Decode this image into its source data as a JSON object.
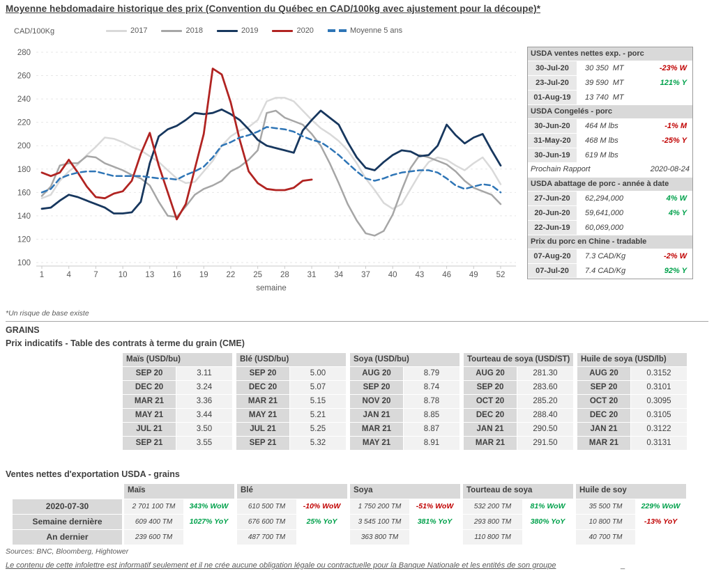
{
  "title": "Moyenne hebdomadaire historique des prix (Convention du Québec en CAD/100kg avec ajustement pour la découpe)*",
  "chart": {
    "unit_label": "CAD/100Kg",
    "x_axis_label": "semaine"
  },
  "chart_data": {
    "type": "line",
    "title": "Moyenne hebdomadaire historique des prix",
    "xlabel": "semaine",
    "ylabel": "CAD/100Kg",
    "ylim": [
      100,
      280
    ],
    "yticks": [
      100,
      120,
      140,
      160,
      180,
      200,
      220,
      240,
      260,
      280
    ],
    "xticks": [
      1,
      4,
      7,
      10,
      13,
      16,
      19,
      22,
      25,
      28,
      31,
      34,
      37,
      40,
      43,
      46,
      49,
      52
    ],
    "x_range": [
      1,
      52
    ],
    "grid": "horizontal-dashed",
    "legend_position": "top",
    "series": [
      {
        "name": "2017",
        "color": "#d9d9d9",
        "dash": false,
        "values": [
          155,
          158,
          170,
          178,
          184,
          192,
          199,
          207,
          206,
          203,
          199,
          196,
          191,
          186,
          179,
          172,
          168,
          169,
          178,
          187,
          200,
          208,
          213,
          216,
          222,
          238,
          241,
          241,
          238,
          230,
          222,
          215,
          210,
          204,
          196,
          185,
          172,
          162,
          151,
          146,
          150,
          163,
          176,
          186,
          190,
          188,
          183,
          179,
          185,
          190,
          180,
          167
        ]
      },
      {
        "name": "2018",
        "color": "#a6a6a6",
        "dash": false,
        "values": [
          157,
          165,
          183,
          185,
          185,
          191,
          190,
          185,
          182,
          179,
          175,
          172,
          166,
          152,
          140,
          139,
          148,
          158,
          163,
          166,
          170,
          178,
          182,
          188,
          196,
          228,
          230,
          224,
          221,
          218,
          210,
          200,
          185,
          168,
          150,
          136,
          125,
          123,
          127,
          141,
          162,
          181,
          192,
          190,
          187,
          184,
          178,
          170,
          164,
          161,
          158,
          150
        ]
      },
      {
        "name": "2019",
        "color": "#17375e",
        "dash": false,
        "values": [
          146,
          147,
          153,
          158,
          156,
          153,
          150,
          147,
          142,
          142,
          143,
          152,
          185,
          208,
          214,
          217,
          222,
          228,
          227,
          228,
          231,
          227,
          222,
          214,
          205,
          200,
          198,
          196,
          194,
          213,
          222,
          230,
          224,
          218,
          203,
          190,
          181,
          179,
          186,
          192,
          196,
          195,
          191,
          192,
          200,
          218,
          209,
          202,
          207,
          210,
          196,
          183
        ]
      },
      {
        "name": "2020",
        "color": "#b12422",
        "dash": false,
        "values": [
          177,
          174,
          177,
          188,
          177,
          165,
          156,
          155,
          159,
          161,
          170,
          193,
          211,
          183,
          160,
          137,
          150,
          180,
          210,
          266,
          261,
          237,
          205,
          178,
          168,
          163,
          162,
          162,
          164,
          170,
          171
        ]
      },
      {
        "name": "Moyenne 5 ans",
        "color": "#2e75b6",
        "dash": true,
        "values": [
          160,
          163,
          172,
          175,
          177,
          178,
          178,
          176,
          174,
          174,
          174,
          174,
          173,
          172,
          172,
          171,
          175,
          178,
          182,
          190,
          200,
          203,
          207,
          209,
          212,
          216,
          215,
          214,
          212,
          208,
          205,
          203,
          198,
          192,
          185,
          178,
          172,
          170,
          172,
          175,
          177,
          178,
          179,
          179,
          177,
          172,
          166,
          163,
          165,
          167,
          166,
          160
        ]
      }
    ]
  },
  "status_colors": {
    "red": "#c00000",
    "green": "#00a14b"
  },
  "side_table": {
    "sections": [
      {
        "header": "USDA ventes nettes exp. - porc",
        "rows": [
          {
            "date": "30-Jul-20",
            "value": "30 350  MT",
            "pct": "-23% W",
            "status": "red"
          },
          {
            "date": "23-Jul-20",
            "value": "39 590  MT",
            "pct": "121% Y",
            "status": "green"
          },
          {
            "date": "01-Aug-19",
            "value": "13 740  MT",
            "pct": "",
            "status": ""
          }
        ]
      },
      {
        "header": "USDA Congelés - porc",
        "rows": [
          {
            "date": "30-Jun-20",
            "value": "464 M lbs",
            "pct": "-1% M",
            "status": "red"
          },
          {
            "date": "31-May-20",
            "value": "468 M lbs",
            "pct": "-25% Y",
            "status": "red"
          },
          {
            "date": "30-Jun-19",
            "value": "619 M lbs",
            "pct": "",
            "status": ""
          }
        ]
      },
      {
        "note": {
          "label": "Prochain Rapport",
          "value": "2020-08-24"
        }
      },
      {
        "header": "USDA abattage de porc - année à date",
        "rows": [
          {
            "date": "27-Jun-20",
            "value": "62,294,000",
            "pct": "4% W",
            "status": "green"
          },
          {
            "date": "20-Jun-20",
            "value": "59,641,000",
            "pct": "4% Y",
            "status": "green"
          },
          {
            "date": "22-Jun-19",
            "value": "60,069,000",
            "pct": "",
            "status": ""
          }
        ]
      },
      {
        "header": "Prix du porc en Chine - tradable",
        "rows": [
          {
            "date": "07-Aug-20",
            "value": "7.3 CAD/Kg",
            "pct": "-2% W",
            "status": "red"
          },
          {
            "date": "07-Jul-20",
            "value": "7.4 CAD/Kg",
            "pct": "92% Y",
            "status": "green"
          }
        ]
      }
    ]
  },
  "footnote": "*Un risque de base existe",
  "grains": {
    "section_title": "GRAINS",
    "futures_title": "Prix indicatifs - Table des contrats à terme du grain (CME)",
    "futures": [
      {
        "header": "Maïs (USD/bu)",
        "rows": [
          [
            "SEP 20",
            "3.11"
          ],
          [
            "DEC 20",
            "3.24"
          ],
          [
            "MAR 21",
            "3.36"
          ],
          [
            "MAY 21",
            "3.44"
          ],
          [
            "JUL 21",
            "3.50"
          ],
          [
            "SEP 21",
            "3.55"
          ]
        ]
      },
      {
        "header": "Blé (USD/bu)",
        "rows": [
          [
            "SEP 20",
            "5.00"
          ],
          [
            "DEC 20",
            "5.07"
          ],
          [
            "MAR 21",
            "5.15"
          ],
          [
            "MAY 21",
            "5.21"
          ],
          [
            "JUL 21",
            "5.25"
          ],
          [
            "SEP 21",
            "5.32"
          ]
        ]
      },
      {
        "header": "Soya (USD/bu)",
        "rows": [
          [
            "AUG 20",
            "8.79"
          ],
          [
            "SEP 20",
            "8.74"
          ],
          [
            "NOV 20",
            "8.78"
          ],
          [
            "JAN 21",
            "8.85"
          ],
          [
            "MAR 21",
            "8.87"
          ],
          [
            "MAY 21",
            "8.91"
          ]
        ]
      },
      {
        "header": "Tourteau de soya (USD/ST)",
        "rows": [
          [
            "AUG 20",
            "281.30"
          ],
          [
            "SEP 20",
            "283.60"
          ],
          [
            "OCT 20",
            "285.20"
          ],
          [
            "DEC 20",
            "288.40"
          ],
          [
            "JAN 21",
            "290.50"
          ],
          [
            "MAR 21",
            "291.50"
          ]
        ]
      },
      {
        "header": "Huile de soya (USD/lb)",
        "rows": [
          [
            "AUG 20",
            "0.3152"
          ],
          [
            "SEP 20",
            "0.3101"
          ],
          [
            "OCT 20",
            "0.3095"
          ],
          [
            "DEC 20",
            "0.3105"
          ],
          [
            "JAN 21",
            "0.3122"
          ],
          [
            "MAR 21",
            "0.3131"
          ]
        ]
      }
    ],
    "exports_title": "Ventes nettes d'exportation USDA - grains",
    "exports": {
      "row_labels": [
        "2020-07-30",
        "Semaine dernière",
        "An dernier"
      ],
      "groups": [
        {
          "header": "Maïs",
          "rows": [
            [
              "2 701 100 TM",
              "343% WoW",
              "green"
            ],
            [
              "609 400 TM",
              "1027% YoY",
              "green"
            ],
            [
              "239 600 TM",
              "",
              ""
            ]
          ]
        },
        {
          "header": "Blé",
          "rows": [
            [
              "610 500 TM",
              "-10% WoW",
              "red"
            ],
            [
              "676 600 TM",
              "25% YoY",
              "green"
            ],
            [
              "487 700 TM",
              "",
              ""
            ]
          ]
        },
        {
          "header": "Soya",
          "rows": [
            [
              "1 750 200 TM",
              "-51% WoW",
              "red"
            ],
            [
              "3 545 100 TM",
              "381% YoY",
              "green"
            ],
            [
              "363 800 TM",
              "",
              ""
            ]
          ]
        },
        {
          "header": "Tourteau de soya",
          "rows": [
            [
              "532 200 TM",
              "81% WoW",
              "green"
            ],
            [
              "293 800 TM",
              "380% YoY",
              "green"
            ],
            [
              "110 800 TM",
              "",
              ""
            ]
          ]
        },
        {
          "header": "Huile de soy",
          "rows": [
            [
              "35 500 TM",
              "229% WoW",
              "green"
            ],
            [
              "10 800 TM",
              "-13% YoY",
              "red"
            ],
            [
              "40 700 TM",
              "",
              ""
            ]
          ]
        }
      ]
    }
  },
  "footer": {
    "sources": "Sources: BNC, Bloomberg, Hightower",
    "disclaimer": "Le contenu de cette infolettre est informatif seulement et il ne crée aucune obligation légale ou contractuelle pour la Banque Nationale et les entités de son groupe",
    "trailing": "_"
  }
}
